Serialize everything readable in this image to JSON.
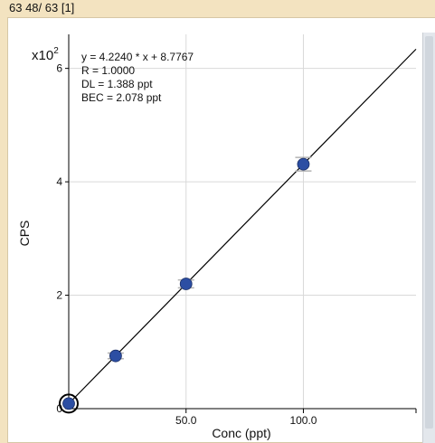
{
  "header": {
    "title": "63 48/ 63 [1]"
  },
  "chart_data": {
    "type": "scatter",
    "multiplier_label": "x10",
    "multiplier_exp": "2",
    "xlabel": "Conc (ppt)",
    "ylabel": "CPS",
    "xlim": [
      0,
      148
    ],
    "ylim": [
      0,
      6.6
    ],
    "x_ticks": [
      50,
      100
    ],
    "x_tick_labels": [
      "50.0",
      "100.0"
    ],
    "y_ticks": [
      0,
      2,
      4,
      6
    ],
    "y_tick_labels": [
      "0",
      "2",
      "4",
      "6"
    ],
    "grid": true,
    "points": [
      {
        "x": 0,
        "y": 0.09,
        "err": 0.0
      },
      {
        "x": 20,
        "y": 0.93,
        "err": 0.05
      },
      {
        "x": 50,
        "y": 2.2,
        "err": 0.07
      },
      {
        "x": 100,
        "y": 4.31,
        "err": 0.12
      }
    ],
    "fit_line": {
      "x": [
        0,
        148
      ],
      "y": [
        0.0878,
        6.339
      ]
    },
    "annotations": [
      "y = 4.2240 * x  + 8.7767",
      "R =  1.0000",
      "DL = 1.388 ppt",
      "BEC = 2.078 ppt"
    ],
    "colors": {
      "point": "#2c4ea3",
      "error_bar": "#b3b3b3",
      "line": "#000000",
      "grid": "#d9d9d9"
    }
  }
}
